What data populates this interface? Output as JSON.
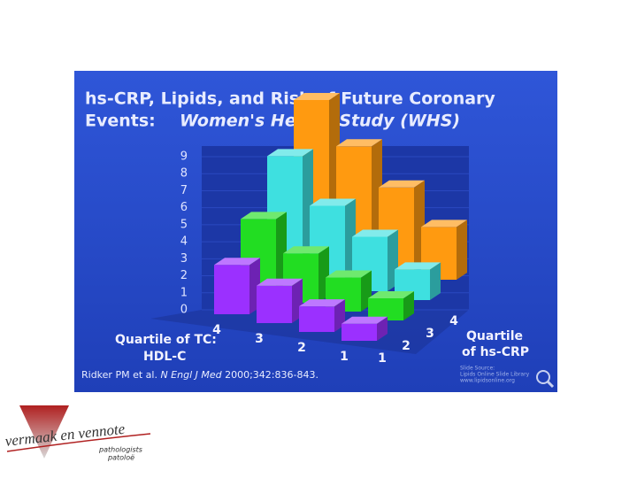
{
  "chart_data": {
    "type": "bar3d",
    "title": [
      "hs-CRP, Lipids, and Risk of Future Coronary",
      "Events:",
      "Women's Health Study (WHS)"
    ],
    "x_label": [
      "Quartile of TC:",
      "HDL-C"
    ],
    "series_label": [
      "Quartile",
      "of hs-CRP"
    ],
    "categories": [
      "4",
      "3",
      "2",
      "1"
    ],
    "series": [
      {
        "name": "1",
        "color": "#9b30ff",
        "values": [
          2.9,
          2.2,
          1.5,
          1.0
        ]
      },
      {
        "name": "2",
        "color": "#22dd22",
        "values": [
          4.4,
          2.9,
          2.0,
          1.3
        ]
      },
      {
        "name": "3",
        "color": "#3ee0e0",
        "values": [
          6.9,
          4.5,
          3.2,
          1.8
        ]
      },
      {
        "name": "4",
        "color": "#ff9a10",
        "values": [
          9.0,
          6.8,
          4.9,
          3.1
        ]
      }
    ],
    "ylim": [
      0,
      9
    ],
    "yticks": [
      0,
      1,
      2,
      3,
      4,
      5,
      6,
      7,
      8,
      9
    ],
    "grid": true,
    "source": [
      "Ridker PM et al.",
      "N Engl J Med",
      "2000;342:836-843."
    ],
    "slide_source": [
      "Slide Source:",
      "Lipids Online Slide Library",
      "www.lipidsonline.org"
    ]
  },
  "logo": {
    "name": "vermaak en vennote",
    "lines": [
      "pathologists",
      "patoloë"
    ]
  }
}
